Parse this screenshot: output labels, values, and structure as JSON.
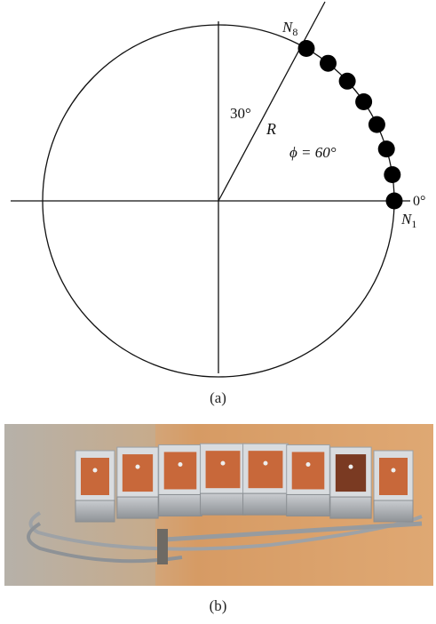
{
  "figure": {
    "panel_a": {
      "caption": "(a)",
      "labels": {
        "node_first": "N",
        "node_first_sub": "1",
        "node_last": "N",
        "node_last_sub": "8",
        "radius": "R",
        "angle_top": "30°",
        "phi": "ϕ = 60°",
        "zero_deg": "0°"
      },
      "node_count": 8,
      "arc_span_deg": 60
    },
    "panel_b": {
      "caption": "(b)",
      "photo_description_visible_only": ""
    }
  },
  "colors": {
    "line": "#111111",
    "node": "#000000",
    "wall": "#c98a4f",
    "wall_light": "#e0ad78",
    "background_left": "#b9b3a8",
    "patch": "#c8683a",
    "frame": "#d9dcdf",
    "metal": "#a8acb0"
  }
}
